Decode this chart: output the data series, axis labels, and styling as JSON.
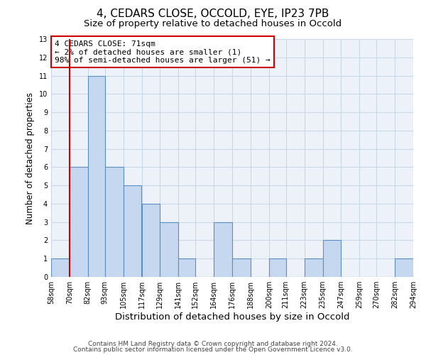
{
  "title1": "4, CEDARS CLOSE, OCCOLD, EYE, IP23 7PB",
  "title2": "Size of property relative to detached houses in Occold",
  "xlabel": "Distribution of detached houses by size in Occold",
  "ylabel": "Number of detached properties",
  "bar_edges": [
    58,
    70,
    82,
    93,
    105,
    117,
    129,
    141,
    152,
    164,
    176,
    188,
    200,
    211,
    223,
    235,
    247,
    259,
    270,
    282,
    294
  ],
  "bar_heights": [
    1,
    6,
    11,
    6,
    5,
    4,
    3,
    1,
    0,
    3,
    1,
    0,
    1,
    0,
    1,
    2,
    0,
    0,
    0,
    1
  ],
  "bar_color": "#c5d8f0",
  "bar_edge_color": "#5a8fc2",
  "bar_edge_width": 0.8,
  "vline_x": 70,
  "vline_color": "#cc0000",
  "vline_linewidth": 1.5,
  "annotation_text": "4 CEDARS CLOSE: 71sqm\n← 2% of detached houses are smaller (1)\n98% of semi-detached houses are larger (51) →",
  "annotation_boxcolor": "white",
  "annotation_edgecolor": "#cc0000",
  "ylim": [
    0,
    13
  ],
  "yticks": [
    0,
    1,
    2,
    3,
    4,
    5,
    6,
    7,
    8,
    9,
    10,
    11,
    12,
    13
  ],
  "xtick_labels": [
    "58sqm",
    "70sqm",
    "82sqm",
    "93sqm",
    "105sqm",
    "117sqm",
    "129sqm",
    "141sqm",
    "152sqm",
    "164sqm",
    "176sqm",
    "188sqm",
    "200sqm",
    "211sqm",
    "223sqm",
    "235sqm",
    "247sqm",
    "259sqm",
    "270sqm",
    "282sqm",
    "294sqm"
  ],
  "grid_color": "#c8d8e8",
  "background_color": "#edf2f9",
  "footer1": "Contains HM Land Registry data © Crown copyright and database right 2024.",
  "footer2": "Contains public sector information licensed under the Open Government Licence v3.0.",
  "title1_fontsize": 11,
  "title2_fontsize": 9.5,
  "xlabel_fontsize": 9.5,
  "ylabel_fontsize": 8.5,
  "tick_fontsize": 7,
  "annotation_fontsize": 8,
  "footer_fontsize": 6.5
}
